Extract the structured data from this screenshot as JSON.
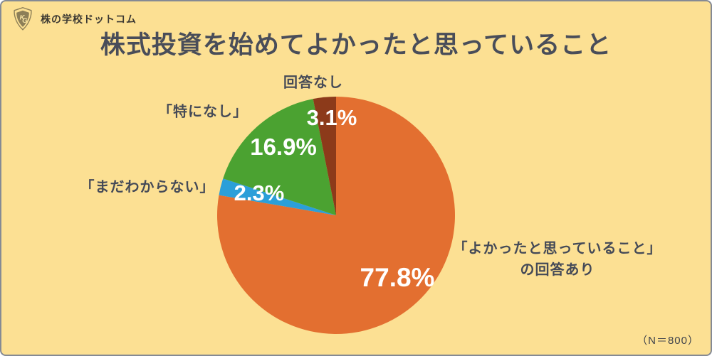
{
  "page": {
    "background_color": "#FCE093"
  },
  "header": {
    "logo_icon": "kg-shield-icon",
    "logo_text": "株の学校ドットコム",
    "title": "株式投資を始めてよかったと思っていること"
  },
  "chart_data": {
    "type": "pie",
    "title": "株式投資を始めてよかったと思っていること",
    "start_angle_deg": 0,
    "direction": "clockwise",
    "sample_size": 800,
    "legend_position": "callouts-around-pie",
    "segments": [
      {
        "label": "「よかったと思っていること」の回答あり",
        "callout_lines": [
          "「よかったと思っていること」",
          "の回答あり"
        ],
        "value": 77.8,
        "value_label": "77.8%",
        "color": "#E36F30"
      },
      {
        "label": "「まだわからない」",
        "value": 2.3,
        "value_label": "2.3%",
        "color": "#2B9FD9"
      },
      {
        "label": "「特になし」",
        "value": 16.9,
        "value_label": "16.9%",
        "color": "#4BA231"
      },
      {
        "label": "回答なし",
        "value": 3.1,
        "value_label": "3.1%",
        "color": "#8C3A1A"
      }
    ]
  },
  "footnote": "（N＝800）"
}
